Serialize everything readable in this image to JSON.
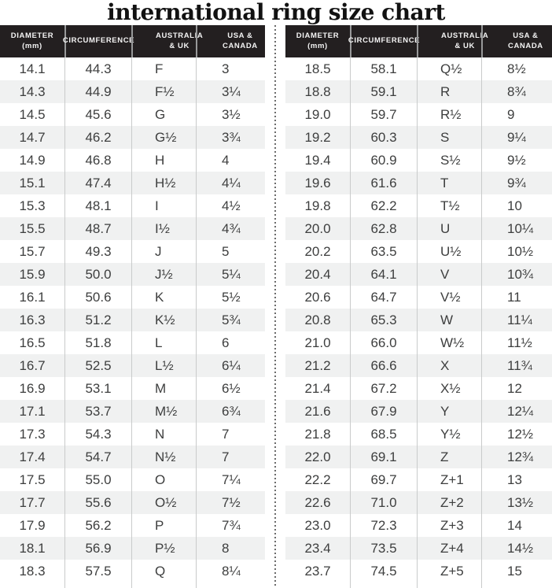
{
  "title": "international ring size chart",
  "headers": [
    "DIAMETER\n(mm)",
    "CIRCUMFERENCE",
    "AUSTRALIA\n& UK",
    "USA &\nCANADA"
  ],
  "colors": {
    "header_bg": "#231f20",
    "header_text": "#f4f4f4",
    "alt_row_bg": "#f0f1f1",
    "body_text": "#3d3e3e",
    "column_divider": "#c9cbcb",
    "dotted_divider": "#6b6b6b"
  },
  "chart_data": {
    "type": "table",
    "title": "international ring size chart",
    "columns": [
      "DIAMETER (mm)",
      "CIRCUMFERENCE",
      "AUSTRALIA & UK",
      "USA & CANADA"
    ],
    "tables": [
      {
        "name": "left",
        "rows": [
          [
            "14.1",
            "44.3",
            "F",
            "3"
          ],
          [
            "14.3",
            "44.9",
            "F½",
            "3¼"
          ],
          [
            "14.5",
            "45.6",
            "G",
            "3½"
          ],
          [
            "14.7",
            "46.2",
            "G½",
            "3¾"
          ],
          [
            "14.9",
            "46.8",
            "H",
            "4"
          ],
          [
            "15.1",
            "47.4",
            "H½",
            "4¼"
          ],
          [
            "15.3",
            "48.1",
            "I",
            "4½"
          ],
          [
            "15.5",
            "48.7",
            "I½",
            "4¾"
          ],
          [
            "15.7",
            "49.3",
            "J",
            "5"
          ],
          [
            "15.9",
            "50.0",
            "J½",
            "5¼"
          ],
          [
            "16.1",
            "50.6",
            "K",
            "5½"
          ],
          [
            "16.3",
            "51.2",
            "K½",
            "5¾"
          ],
          [
            "16.5",
            "51.8",
            "L",
            "6"
          ],
          [
            "16.7",
            "52.5",
            "L½",
            "6¼"
          ],
          [
            "16.9",
            "53.1",
            "M",
            "6½"
          ],
          [
            "17.1",
            "53.7",
            "M½",
            "6¾"
          ],
          [
            "17.3",
            "54.3",
            "N",
            "7"
          ],
          [
            "17.4",
            "54.7",
            "N½",
            "7"
          ],
          [
            "17.5",
            "55.0",
            "O",
            "7¼"
          ],
          [
            "17.7",
            "55.6",
            "O½",
            "7½"
          ],
          [
            "17.9",
            "56.2",
            "P",
            "7¾"
          ],
          [
            "18.1",
            "56.9",
            "P½",
            "8"
          ],
          [
            "18.3",
            "57.5",
            "Q",
            "8¼"
          ]
        ]
      },
      {
        "name": "right",
        "rows": [
          [
            "18.5",
            "58.1",
            "Q½",
            "8½"
          ],
          [
            "18.8",
            "59.1",
            "R",
            "8¾"
          ],
          [
            "19.0",
            "59.7",
            "R½",
            "9"
          ],
          [
            "19.2",
            "60.3",
            "S",
            "9¼"
          ],
          [
            "19.4",
            "60.9",
            "S½",
            "9½"
          ],
          [
            "19.6",
            "61.6",
            "T",
            "9¾"
          ],
          [
            "19.8",
            "62.2",
            "T½",
            "10"
          ],
          [
            "20.0",
            "62.8",
            "U",
            "10¼"
          ],
          [
            "20.2",
            "63.5",
            "U½",
            "10½"
          ],
          [
            "20.4",
            "64.1",
            "V",
            "10¾"
          ],
          [
            "20.6",
            "64.7",
            "V½",
            "11"
          ],
          [
            "20.8",
            "65.3",
            "W",
            "11¼"
          ],
          [
            "21.0",
            "66.0",
            "W½",
            "11½"
          ],
          [
            "21.2",
            "66.6",
            "X",
            "11¾"
          ],
          [
            "21.4",
            "67.2",
            "X½",
            "12"
          ],
          [
            "21.6",
            "67.9",
            "Y",
            "12¼"
          ],
          [
            "21.8",
            "68.5",
            "Y½",
            "12½"
          ],
          [
            "22.0",
            "69.1",
            "Z",
            "12¾"
          ],
          [
            "22.2",
            "69.7",
            "Z+1",
            "13"
          ],
          [
            "22.6",
            "71.0",
            "Z+2",
            "13½"
          ],
          [
            "23.0",
            "72.3",
            "Z+3",
            "14"
          ],
          [
            "23.4",
            "73.5",
            "Z+4",
            "14½"
          ],
          [
            "23.7",
            "74.5",
            "Z+5",
            "15"
          ]
        ]
      }
    ]
  }
}
